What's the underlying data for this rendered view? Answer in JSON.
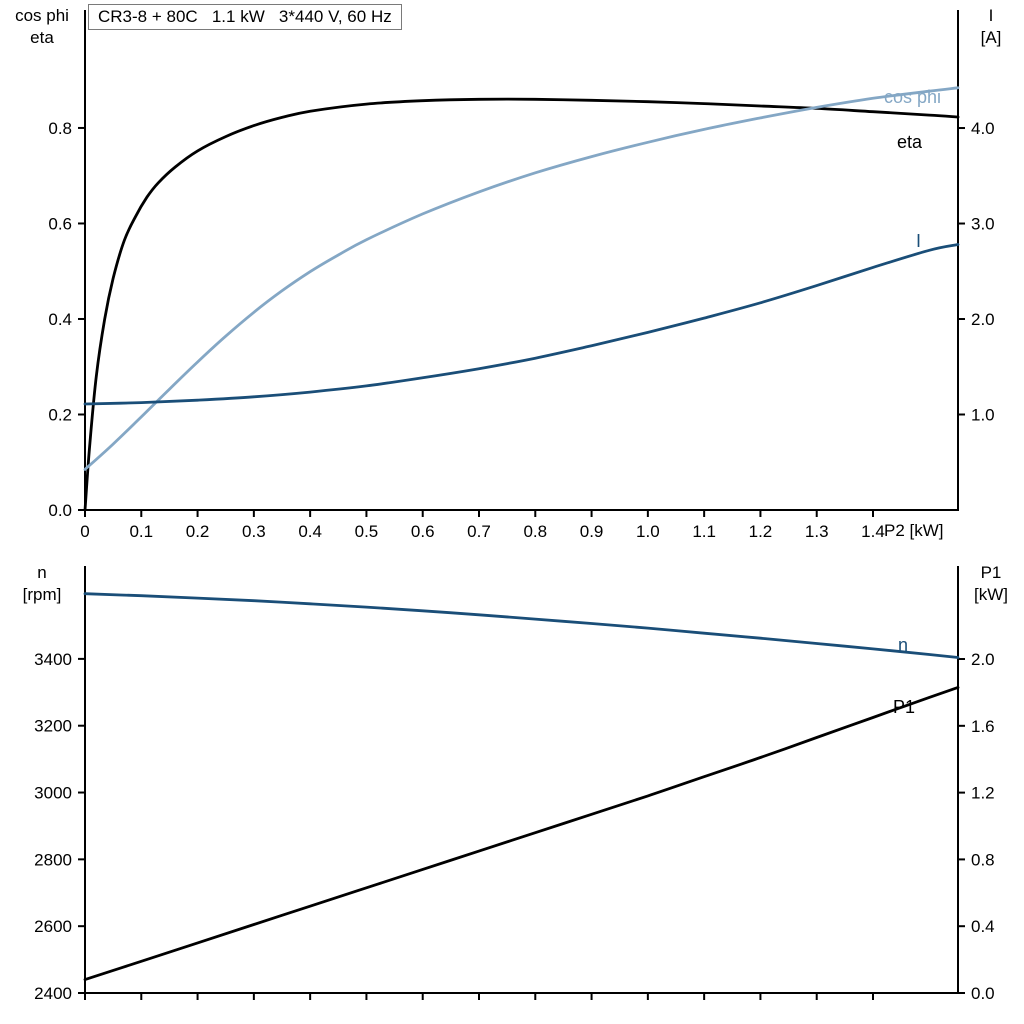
{
  "colors": {
    "black": "#000000",
    "dark_blue": "#1a4e78",
    "light_blue": "#84a7c5",
    "axis": "#000000",
    "background": "#ffffff"
  },
  "axis_corner_labels": {
    "upper_left": [
      "cos phi",
      "eta"
    ],
    "upper_right": [
      "I",
      "[A]"
    ],
    "lower_left": [
      "n",
      "[rpm]"
    ],
    "lower_right": [
      "P1",
      "[kW]"
    ]
  },
  "chart_data": [
    {
      "id": "upper",
      "type": "line",
      "title": "CR3-8 + 80C   1.1 kW   3*440 V, 60 Hz",
      "legend": "inline-labels-at-curve-ends",
      "grid": false,
      "x": {
        "min": 0,
        "max": 1.551,
        "label": "P2 [kW]",
        "ticks": [
          0,
          0.1,
          0.2,
          0.3,
          0.4,
          0.5,
          0.6,
          0.7,
          0.8,
          0.9,
          1.0,
          1.1,
          1.2,
          1.3,
          1.4
        ],
        "tick_labels": [
          "0",
          "0.1",
          "0.2",
          "0.3",
          "0.4",
          "0.5",
          "0.6",
          "0.7",
          "0.8",
          "0.9",
          "1.0",
          "1.1",
          "1.2",
          "1.3",
          "1.4"
        ]
      },
      "y_left": {
        "min": 0,
        "max": 1.047,
        "label": "cos phi / eta",
        "ticks": [
          0,
          0.2,
          0.4,
          0.6,
          0.8
        ],
        "tick_labels": [
          "0.0",
          "0.2",
          "0.4",
          "0.6",
          "0.8"
        ]
      },
      "y_right": {
        "min": 0,
        "max": 5.236,
        "label": "I [A]",
        "ticks": [
          1,
          2,
          3,
          4
        ],
        "tick_labels": [
          "1.0",
          "2.0",
          "3.0",
          "4.0"
        ]
      },
      "series": [
        {
          "id": "eta",
          "name": "eta",
          "axis": "left",
          "color": "#000000",
          "x": [
            0,
            0.008,
            0.02,
            0.035,
            0.05,
            0.07,
            0.09,
            0.11,
            0.13,
            0.16,
            0.2,
            0.25,
            0.3,
            0.35,
            0.4,
            0.5,
            0.6,
            0.7,
            0.8,
            0.9,
            1.0,
            1.1,
            1.2,
            1.3,
            1.4,
            1.5,
            1.551
          ],
          "y": [
            0,
            0.13,
            0.28,
            0.4,
            0.485,
            0.565,
            0.615,
            0.655,
            0.685,
            0.718,
            0.752,
            0.782,
            0.805,
            0.822,
            0.835,
            0.85,
            0.857,
            0.86,
            0.86,
            0.858,
            0.855,
            0.851,
            0.846,
            0.841,
            0.834,
            0.827,
            0.823
          ]
        },
        {
          "id": "cos-phi",
          "name": "cos phi",
          "axis": "left",
          "color": "#84a7c5",
          "x": [
            0,
            0.05,
            0.1,
            0.15,
            0.2,
            0.25,
            0.3,
            0.35,
            0.4,
            0.45,
            0.5,
            0.6,
            0.7,
            0.8,
            0.9,
            1.0,
            1.1,
            1.2,
            1.3,
            1.4,
            1.5,
            1.551
          ],
          "y": [
            0.085,
            0.138,
            0.195,
            0.253,
            0.31,
            0.364,
            0.414,
            0.459,
            0.499,
            0.534,
            0.566,
            0.62,
            0.666,
            0.706,
            0.74,
            0.77,
            0.797,
            0.821,
            0.843,
            0.862,
            0.877,
            0.884
          ]
        },
        {
          "id": "current",
          "name": "I",
          "axis": "right",
          "color": "#1a4e78",
          "x": [
            0,
            0.1,
            0.2,
            0.3,
            0.4,
            0.5,
            0.6,
            0.7,
            0.8,
            0.9,
            1.0,
            1.1,
            1.2,
            1.3,
            1.4,
            1.5,
            1.551
          ],
          "y": [
            1.11,
            1.125,
            1.15,
            1.185,
            1.235,
            1.3,
            1.385,
            1.48,
            1.59,
            1.72,
            1.86,
            2.01,
            2.17,
            2.35,
            2.54,
            2.72,
            2.78
          ]
        }
      ]
    },
    {
      "id": "lower",
      "type": "line",
      "title": "",
      "legend": "inline-labels-at-curve-ends",
      "grid": false,
      "x": {
        "min": 0,
        "max": 1.551,
        "label": "",
        "ticks": [
          0,
          0.1,
          0.2,
          0.3,
          0.4,
          0.5,
          0.6,
          0.7,
          0.8,
          0.9,
          1.0,
          1.1,
          1.2,
          1.3,
          1.4
        ],
        "tick_labels": null
      },
      "y_left": {
        "min": 2400,
        "max": 3678,
        "label": "n [rpm]",
        "ticks": [
          2400,
          2600,
          2800,
          3000,
          3200,
          3400
        ],
        "tick_labels": [
          "2400",
          "2600",
          "2800",
          "3000",
          "3200",
          "3400"
        ]
      },
      "y_right": {
        "min": 0,
        "max": 2.557,
        "label": "P1 [kW]",
        "ticks": [
          0,
          0.4,
          0.8,
          1.2,
          1.6,
          2.0
        ],
        "tick_labels": [
          "0.0",
          "0.4",
          "0.8",
          "1.2",
          "1.6",
          "2.0"
        ]
      },
      "series": [
        {
          "id": "speed",
          "name": "n",
          "axis": "left",
          "color": "#1a4e78",
          "x": [
            0,
            0.1,
            0.2,
            0.3,
            0.4,
            0.5,
            0.6,
            0.7,
            0.8,
            0.9,
            1.0,
            1.1,
            1.2,
            1.3,
            1.4,
            1.5,
            1.551
          ],
          "y": [
            3595,
            3589,
            3582,
            3574,
            3565,
            3555,
            3544,
            3532,
            3519,
            3506,
            3492,
            3477,
            3462,
            3446,
            3430,
            3413,
            3404
          ]
        },
        {
          "id": "p1",
          "name": "P1",
          "axis": "right",
          "color": "#000000",
          "x": [
            0,
            0.1,
            0.2,
            0.3,
            0.4,
            0.5,
            0.6,
            0.7,
            0.8,
            0.9,
            1.0,
            1.1,
            1.2,
            1.3,
            1.4,
            1.5,
            1.551
          ],
          "y": [
            0.08,
            0.19,
            0.3,
            0.41,
            0.52,
            0.63,
            0.74,
            0.85,
            0.96,
            1.07,
            1.18,
            1.295,
            1.41,
            1.53,
            1.65,
            1.77,
            1.83
          ]
        }
      ]
    }
  ]
}
